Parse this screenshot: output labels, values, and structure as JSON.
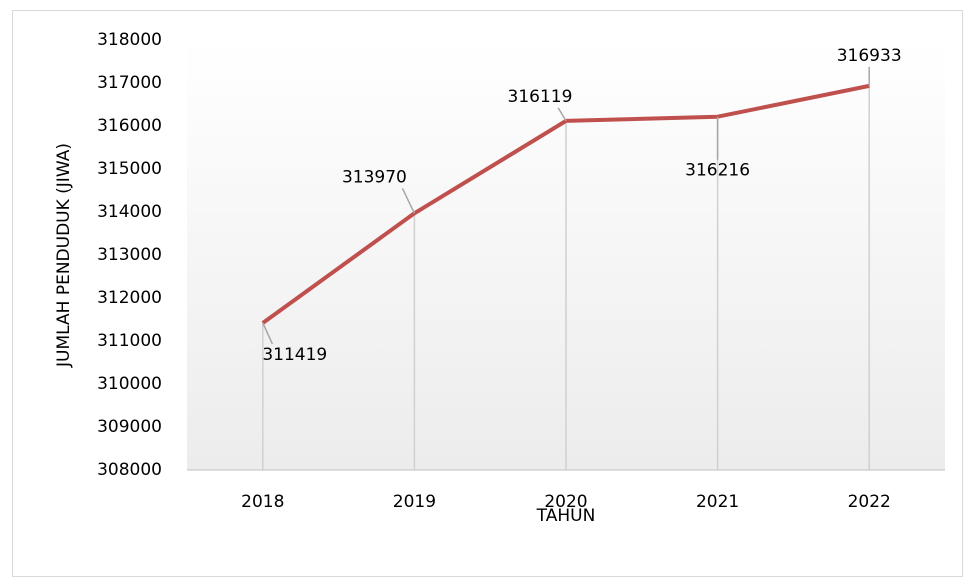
{
  "chart_data": {
    "type": "line",
    "categories": [
      "2018",
      "2019",
      "2020",
      "2021",
      "2022"
    ],
    "series": [
      {
        "name": "JUMLAH PENDUDUK (JIWA)",
        "color": "#c0504d",
        "values": [
          311419,
          313970,
          316119,
          316216,
          316933
        ]
      }
    ],
    "xlabel": "TAHUN",
    "ylabel": "JUMLAH PENDUDUK (JIWA)",
    "ylim": [
      308000,
      318000
    ],
    "yticks": [
      308000,
      309000,
      310000,
      311000,
      312000,
      313000,
      314000,
      315000,
      316000,
      317000,
      318000
    ],
    "grid": false
  }
}
